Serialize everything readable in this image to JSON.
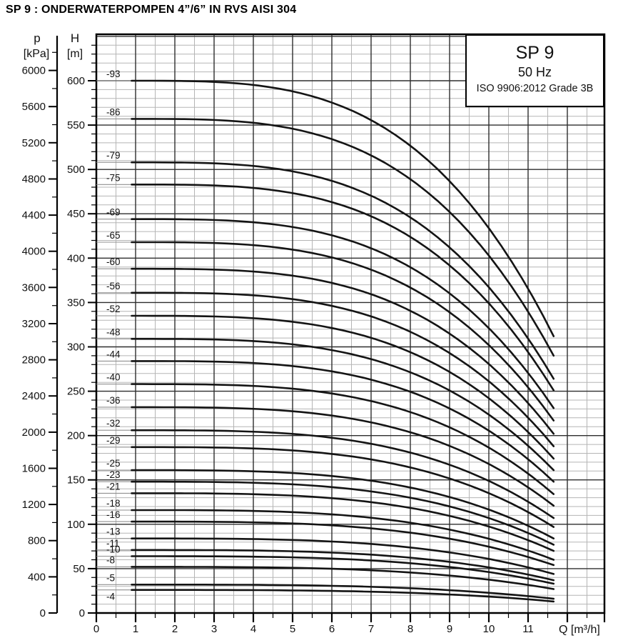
{
  "page_title": "SP 9 : ONDERWATERPOMPEN 4”/6” IN RVS AISI 304",
  "legend": {
    "model": "SP 9",
    "frequency": "50 Hz",
    "standard": "ISO 9906:2012 Grade 3B"
  },
  "chart_data": {
    "type": "line",
    "title": "SP 9 50 Hz pump head curves, head H versus flow Q",
    "grid": true,
    "x_axis": {
      "label": "Q [m³/h]",
      "min": 0,
      "max": 12.95,
      "major_step": 1,
      "minor_step": 0.5,
      "tick_labels": [
        0,
        1,
        2,
        3,
        4,
        5,
        6,
        7,
        8,
        9,
        10,
        11
      ]
    },
    "y_axis_h": {
      "name": "H",
      "unit": "[m]",
      "min": 0,
      "max": 652,
      "major_step": 50,
      "minor_step": 10,
      "tick_labels": [
        600,
        550,
        500,
        450,
        400,
        350,
        300,
        250,
        200,
        150,
        100,
        50,
        0
      ]
    },
    "y_axis_p": {
      "name": "p",
      "unit": "[kPa]",
      "min": 0,
      "max": 6400,
      "major_step": 400,
      "minor_step": 200,
      "kpa_per_m": 9.81,
      "tick_labels": [
        6000,
        5600,
        5200,
        4800,
        4400,
        4000,
        3600,
        3200,
        2800,
        2400,
        2000,
        1600,
        1200,
        800,
        400,
        0
      ]
    },
    "q_curve_start": 0.9,
    "q_curve_end": 11.65,
    "shape_exponent": 3.3,
    "series": [
      {
        "label": "-93",
        "h_start": 600,
        "h_end": 312
      },
      {
        "label": "-86",
        "h_start": 557,
        "h_end": 290
      },
      {
        "label": "-79",
        "h_start": 508,
        "h_end": 264
      },
      {
        "label": "-75",
        "h_start": 483,
        "h_end": 251
      },
      {
        "label": "-69",
        "h_start": 444,
        "h_end": 231
      },
      {
        "label": "-65",
        "h_start": 418,
        "h_end": 217
      },
      {
        "label": "-60",
        "h_start": 388,
        "h_end": 202
      },
      {
        "label": "-56",
        "h_start": 361,
        "h_end": 188
      },
      {
        "label": "-52",
        "h_start": 335,
        "h_end": 174
      },
      {
        "label": "-48",
        "h_start": 309,
        "h_end": 161
      },
      {
        "label": "-44",
        "h_start": 284,
        "h_end": 148
      },
      {
        "label": "-40",
        "h_start": 258,
        "h_end": 134
      },
      {
        "label": "-36",
        "h_start": 232,
        "h_end": 121
      },
      {
        "label": "-32",
        "h_start": 206,
        "h_end": 107
      },
      {
        "label": "-29",
        "h_start": 187,
        "h_end": 97
      },
      {
        "label": "-25",
        "h_start": 161,
        "h_end": 84
      },
      {
        "label": "-23",
        "h_start": 148,
        "h_end": 77
      },
      {
        "label": "-21",
        "h_start": 135,
        "h_end": 70
      },
      {
        "label": "-18",
        "h_start": 116,
        "h_end": 60
      },
      {
        "label": "-16",
        "h_start": 103,
        "h_end": 54
      },
      {
        "label": "-13",
        "h_start": 84,
        "h_end": 44
      },
      {
        "label": "-11",
        "h_start": 71,
        "h_end": 37
      },
      {
        "label": "-10",
        "h_start": 64,
        "h_end": 33
      },
      {
        "label": "-8",
        "h_start": 52,
        "h_end": 27
      },
      {
        "label": "-5",
        "h_start": 32,
        "h_end": 16
      },
      {
        "label": "-4",
        "h_start": 26,
        "h_end": 13
      }
    ],
    "colors": {
      "curve": "#141414",
      "major_grid": "#2e2e2e",
      "minor_grid": "#b5b5b5",
      "axis": "#000000",
      "leader": "#8f8f8f",
      "text": "#111111"
    }
  }
}
